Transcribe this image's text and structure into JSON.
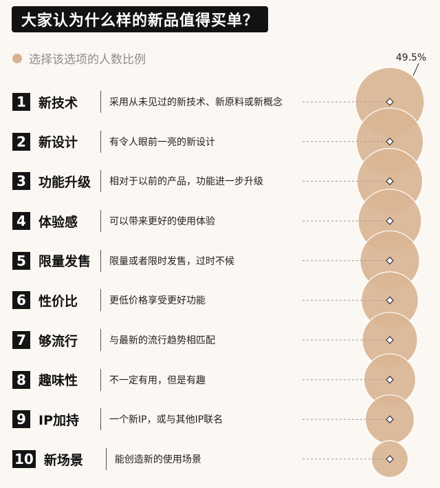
{
  "title": "大家认为什么样的新品值得买单？",
  "legend_label": "选择该选项的人数比例",
  "chart_data": {
    "type": "bubble",
    "title": "大家认为什么样的新品值得买单？",
    "legend": "选择该选项的人数比例",
    "series": [
      {
        "name": "选择该选项的人数比例",
        "unit": "%",
        "values": [
          49.5,
          47,
          45,
          42,
          37,
          34,
          32,
          28,
          25,
          14
        ]
      }
    ],
    "labeled_value": "49.5%",
    "items": [
      {
        "rank": "1",
        "label": "新技术",
        "desc": "采用从未见过的新技术、新原料或新概念"
      },
      {
        "rank": "2",
        "label": "新设计",
        "desc": "有令人眼前一亮的新设计"
      },
      {
        "rank": "3",
        "label": "功能升级",
        "desc": "相对于以前的产品，功能进一步升级"
      },
      {
        "rank": "4",
        "label": "体验感",
        "desc": "可以带来更好的使用体验"
      },
      {
        "rank": "5",
        "label": "限量发售",
        "desc": "限量或者限时发售，过时不候"
      },
      {
        "rank": "6",
        "label": "性价比",
        "desc": "更低价格享受更好功能"
      },
      {
        "rank": "7",
        "label": "够流行",
        "desc": "与最新的流行趋势相匹配"
      },
      {
        "rank": "8",
        "label": "趣味性",
        "desc": "不一定有用，但是有趣"
      },
      {
        "rank": "9",
        "label": "IP加持",
        "desc": "一个新IP，或与其他IP联名"
      },
      {
        "rank": "10",
        "label": "新场景",
        "desc": "能创造新的使用场景"
      }
    ],
    "colors": {
      "bubble": "#d9b595",
      "bubble_stroke": "#ffffff",
      "leader": "#9a9a9a"
    }
  }
}
